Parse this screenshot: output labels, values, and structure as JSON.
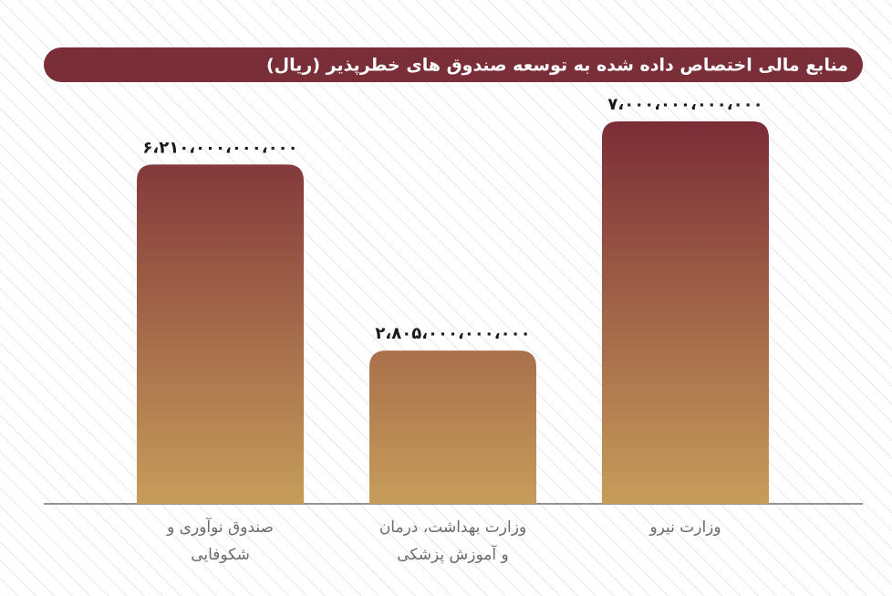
{
  "chart_data": {
    "type": "bar",
    "title": "منابع مالی اختصاص داده شده به توسعه صندوق های خطرپذیر (ریال)",
    "categories": [
      "صندوق نوآوری و\nشکوفایی",
      "وزارت بهداشت، درمان\nو آموزش پزشکی",
      "وزارت نیرو"
    ],
    "values": [
      6210000000000,
      2805000000000,
      7000000000000
    ],
    "value_labels": [
      "۶،۲۱۰،۰۰۰،۰۰۰،۰۰۰",
      "۲،۸۰۵،۰۰۰،۰۰۰،۰۰۰",
      "۷،۰۰۰،۰۰۰،۰۰۰،۰۰۰"
    ],
    "color_gradient": [
      "#7b2d37",
      "#c79d5a"
    ]
  }
}
